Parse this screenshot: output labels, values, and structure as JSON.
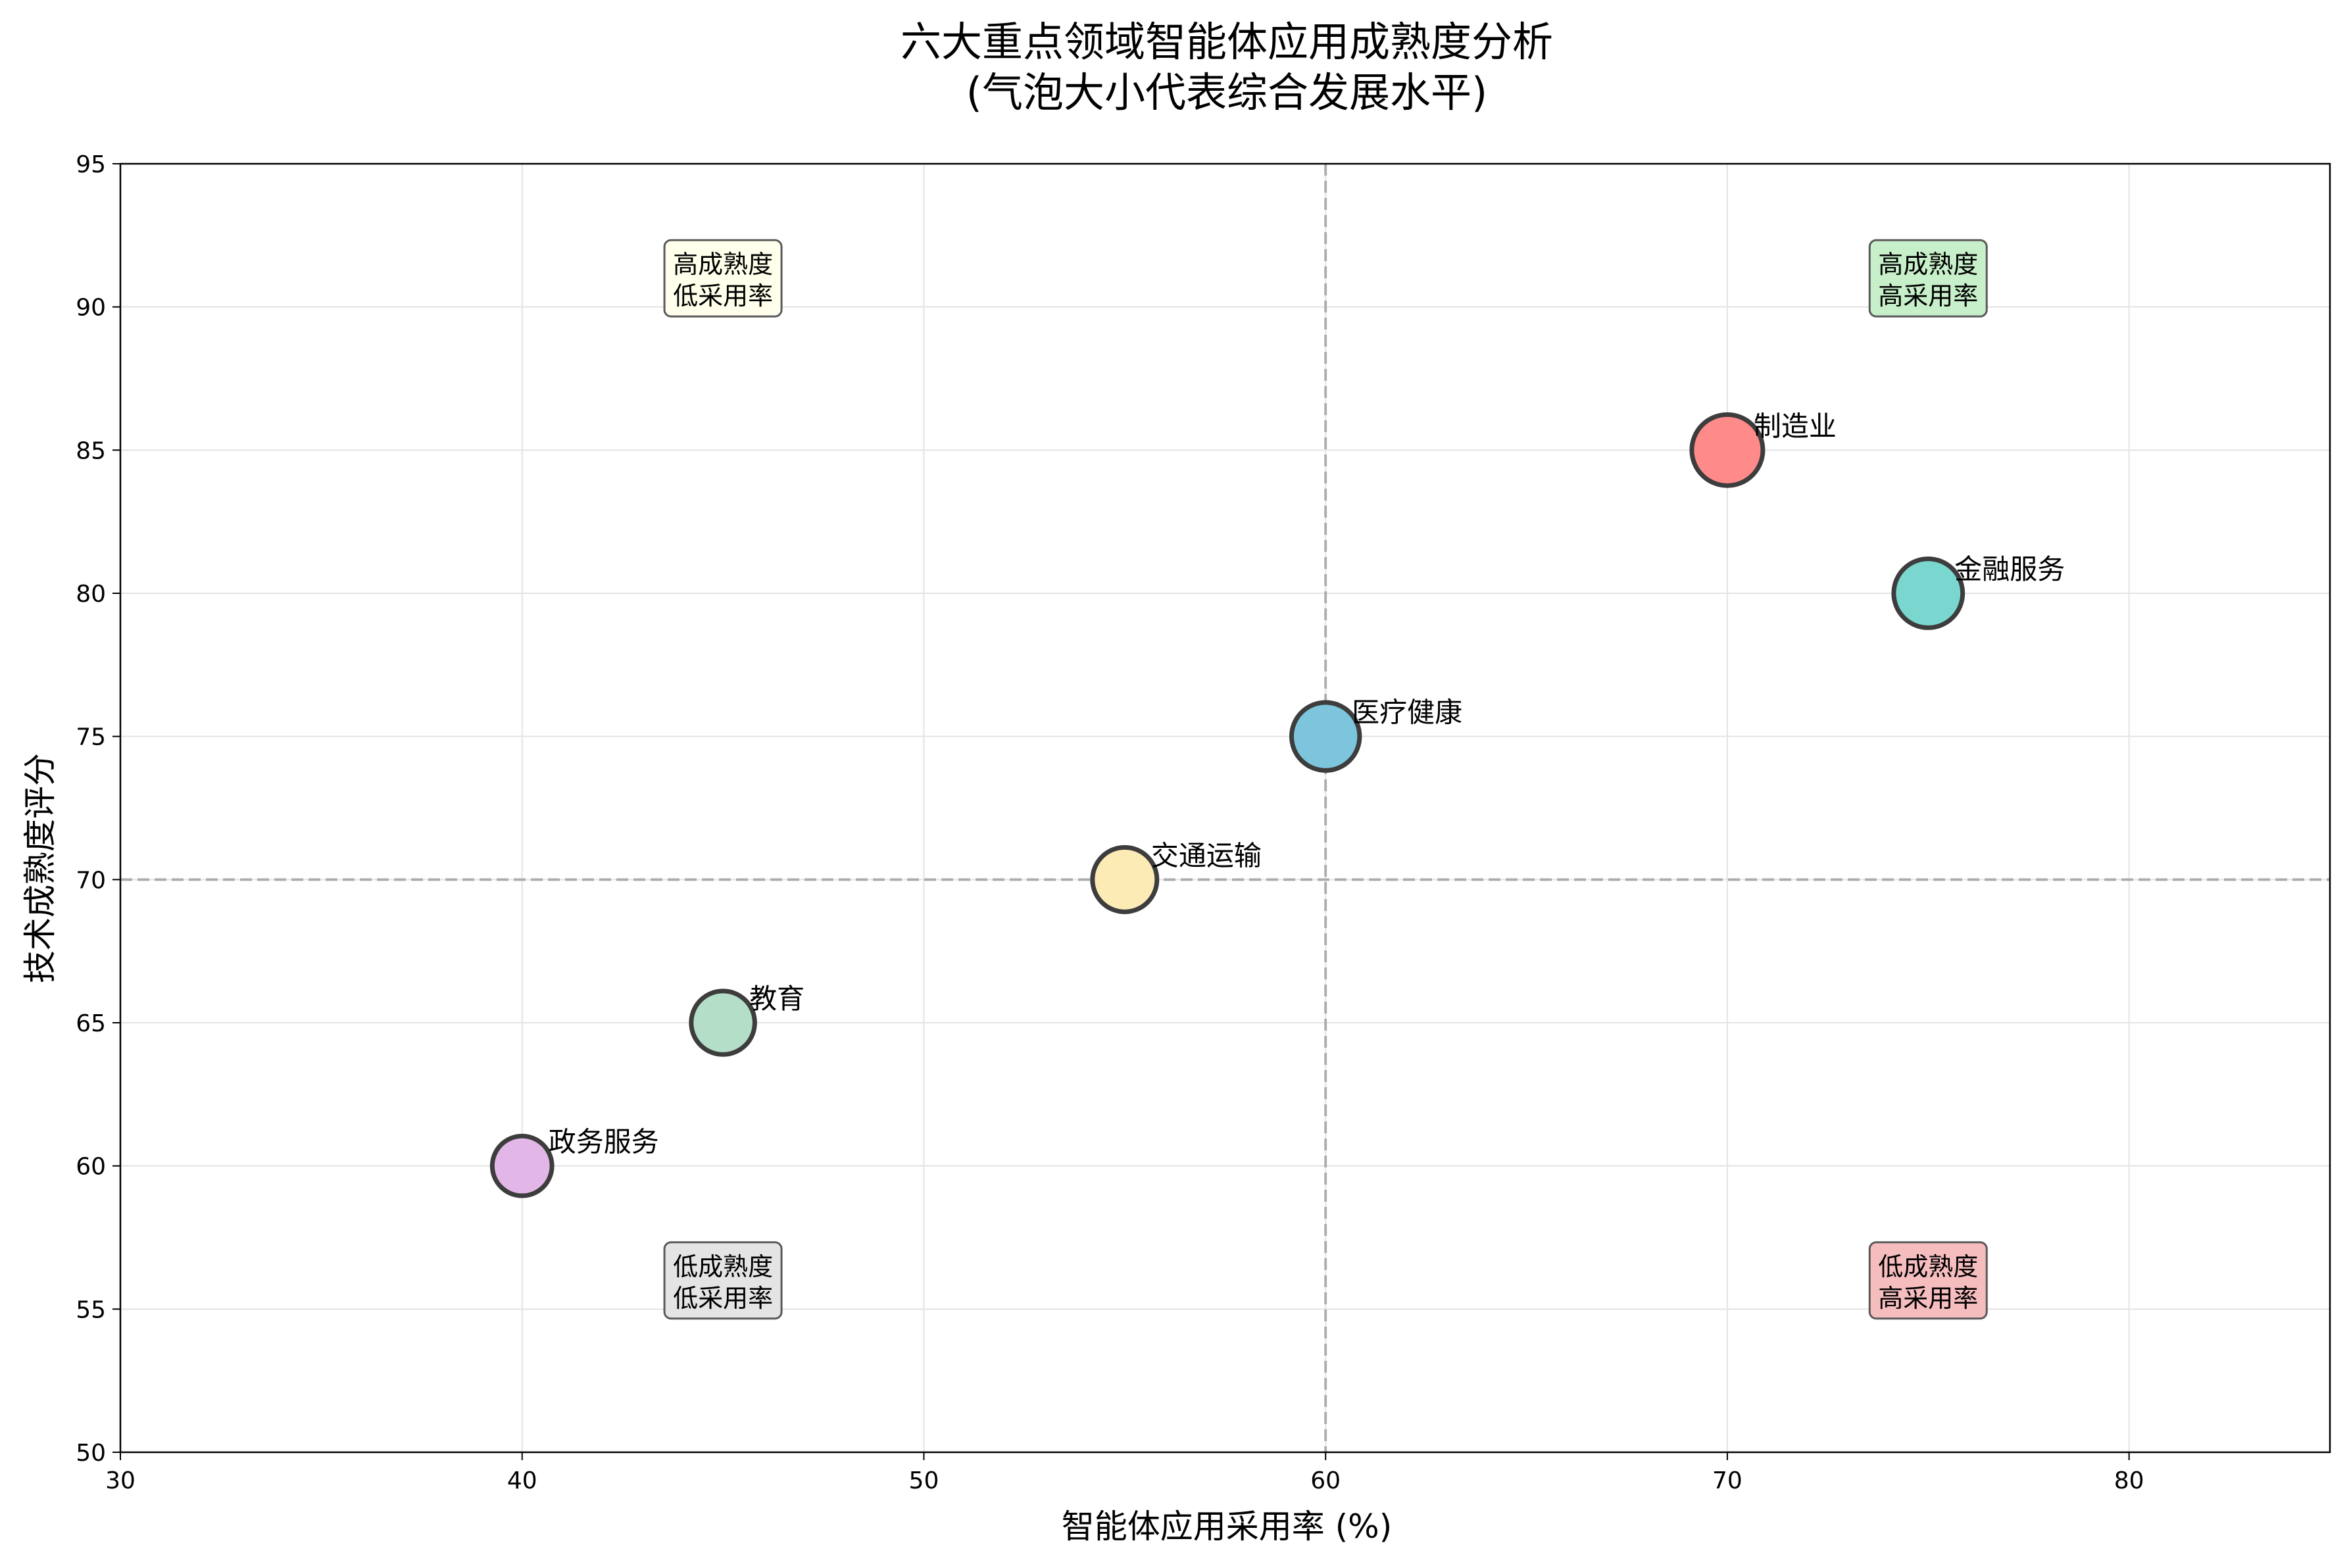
{
  "chart_data": {
    "type": "scatter",
    "title": "六大重点领域智能体应用成熟度分析",
    "subtitle": "(气泡大小代表综合发展水平)",
    "xlabel": "智能体应用采用率 (%)",
    "ylabel": "技术成熟度评分",
    "xlim": [
      30,
      85
    ],
    "ylim": [
      50,
      95
    ],
    "xticks": [
      30,
      40,
      50,
      60,
      70,
      80
    ],
    "yticks": [
      50,
      55,
      60,
      65,
      70,
      75,
      80,
      85,
      90,
      95
    ],
    "grid": true,
    "reference_lines": {
      "x": 60,
      "y": 70
    },
    "points": [
      {
        "name": "制造业",
        "x": 70,
        "y": 85,
        "size": 85,
        "color": "#FF8A8A"
      },
      {
        "name": "金融服务",
        "x": 75,
        "y": 80,
        "size": 80,
        "color": "#7AD7CF"
      },
      {
        "name": "医疗健康",
        "x": 60,
        "y": 75,
        "size": 78,
        "color": "#7CC5DD"
      },
      {
        "name": "交通运输",
        "x": 55,
        "y": 70,
        "size": 70,
        "color": "#FDEBB6"
      },
      {
        "name": "教育",
        "x": 45,
        "y": 65,
        "size": 68,
        "color": "#B4DEC8"
      },
      {
        "name": "政务服务",
        "x": 40,
        "y": 60,
        "size": 60,
        "color": "#E2B6E6"
      }
    ],
    "quadrant_labels": [
      {
        "line1": "高成熟度",
        "line2": "低采用率",
        "x": 45,
        "y": 91,
        "color": "#FFFFEB"
      },
      {
        "line1": "高成熟度",
        "line2": "高采用率",
        "x": 75,
        "y": 91,
        "color": "#C7EFC9"
      },
      {
        "line1": "低成熟度",
        "line2": "低采用率",
        "x": 45,
        "y": 56,
        "color": "#E4E4E4"
      },
      {
        "line1": "低成熟度",
        "line2": "高采用率",
        "x": 75,
        "y": 56,
        "color": "#F6BDBF"
      }
    ]
  }
}
